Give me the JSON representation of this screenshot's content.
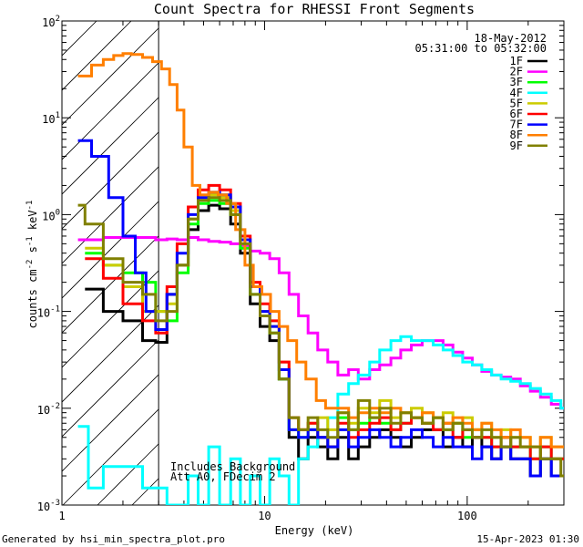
{
  "chart_data": {
    "type": "line",
    "title": "Count Spectra for RHESSI Front Segments",
    "xlabel": "Energy (keV)",
    "ylabel_main": "counts cm",
    "ylabel_sup1": "-2",
    "ylabel_mid": " s",
    "ylabel_sup2": "-1",
    "ylabel_end": " keV",
    "ylabel_sup3": "-1",
    "x_scale": "log",
    "y_scale": "log",
    "xlim": [
      1,
      300
    ],
    "ylim": [
      0.001,
      100
    ],
    "x_tick_labels": [
      {
        "v": 1,
        "label": "1"
      },
      {
        "v": 10,
        "label": "10"
      },
      {
        "v": 100,
        "label": "100"
      }
    ],
    "y_tick_labels": [
      {
        "v": 0.001,
        "base": "10",
        "exp": "-3"
      },
      {
        "v": 0.01,
        "base": "10",
        "exp": "-2"
      },
      {
        "v": 0.1,
        "base": "10",
        "exp": "-1"
      },
      {
        "v": 1,
        "base": "10",
        "exp": "0"
      },
      {
        "v": 10,
        "base": "10",
        "exp": "1"
      },
      {
        "v": 100,
        "base": "10",
        "exp": "2"
      }
    ],
    "date": "18-May-2012",
    "time_range": "05:31:00 to 05:32:00",
    "annotation_lines": [
      "Includes Background",
      "Att A0, FDecim 2"
    ],
    "attenuator_cutoff_kev": 3,
    "grid": false,
    "legend_position": "top-right",
    "series": [
      {
        "name": "1F",
        "color": "#000000",
        "x": [
          1.3,
          1.6,
          2.0,
          2.5,
          2.9,
          3.3,
          3.7,
          4.2,
          4.7,
          5.3,
          6.0,
          6.8,
          7.6,
          8.5,
          9.5,
          10.6,
          11.8,
          13.2,
          14.7,
          16.4,
          18.3,
          20.5,
          23,
          26,
          29,
          33,
          37,
          42,
          47,
          53,
          60,
          68,
          76,
          85,
          95,
          106,
          118,
          132,
          147,
          164,
          183,
          205,
          230,
          260,
          290
        ],
        "values": [
          0.17,
          0.1,
          0.08,
          0.05,
          0.048,
          0.15,
          0.3,
          0.7,
          1.1,
          1.25,
          1.15,
          0.8,
          0.4,
          0.12,
          0.07,
          0.05,
          0.02,
          0.005,
          0.003,
          0.005,
          0.004,
          0.003,
          0.005,
          0.003,
          0.004,
          0.005,
          0.006,
          0.005,
          0.004,
          0.005,
          0.006,
          0.006,
          0.004,
          0.005,
          0.004,
          0.005,
          0.004,
          0.003,
          0.004,
          0.003,
          0.003,
          0.002,
          0.003,
          0.002,
          0.002
        ]
      },
      {
        "name": "2F",
        "color": "#ff00ff",
        "x": [
          1.2,
          1.6,
          2.0,
          2.5,
          2.9,
          3.3,
          3.7,
          4.2,
          4.7,
          5.3,
          6.0,
          6.8,
          7.6,
          8.5,
          9.5,
          10.6,
          11.8,
          13.2,
          14.7,
          16.4,
          18.3,
          20.5,
          23,
          26,
          29,
          33,
          37,
          42,
          47,
          53,
          60,
          68,
          76,
          85,
          95,
          106,
          118,
          132,
          147,
          164,
          183,
          205,
          230,
          260,
          290
        ],
        "values": [
          0.55,
          0.58,
          0.58,
          0.58,
          0.55,
          0.56,
          0.55,
          0.58,
          0.55,
          0.53,
          0.52,
          0.5,
          0.48,
          0.42,
          0.4,
          0.35,
          0.25,
          0.15,
          0.09,
          0.06,
          0.04,
          0.03,
          0.022,
          0.025,
          0.02,
          0.025,
          0.028,
          0.033,
          0.04,
          0.045,
          0.05,
          0.05,
          0.045,
          0.038,
          0.033,
          0.028,
          0.024,
          0.022,
          0.021,
          0.02,
          0.017,
          0.015,
          0.013,
          0.011,
          0.01
        ]
      },
      {
        "name": "3F",
        "color": "#00ff00",
        "x": [
          1.3,
          1.6,
          2.0,
          2.5,
          2.9,
          3.3,
          3.7,
          4.2,
          4.7,
          5.3,
          6.0,
          6.8,
          7.6,
          8.5,
          9.5,
          10.6,
          11.8,
          13.2,
          14.7,
          16.4,
          18.3,
          20.5,
          23,
          26,
          29,
          33,
          37,
          42,
          47,
          53,
          60,
          68,
          76,
          85,
          95,
          106,
          118,
          132,
          147,
          164,
          183,
          205,
          230,
          260,
          290
        ],
        "values": [
          0.4,
          0.3,
          0.25,
          0.2,
          0.1,
          0.08,
          0.25,
          0.8,
          1.3,
          1.4,
          1.3,
          1.0,
          0.45,
          0.15,
          0.09,
          0.06,
          0.02,
          0.006,
          0.005,
          0.006,
          0.005,
          0.004,
          0.008,
          0.006,
          0.007,
          0.008,
          0.007,
          0.006,
          0.007,
          0.008,
          0.007,
          0.008,
          0.006,
          0.007,
          0.005,
          0.006,
          0.005,
          0.004,
          0.005,
          0.004,
          0.004,
          0.003,
          0.004,
          0.003,
          0.003
        ]
      },
      {
        "name": "4F",
        "color": "#00ffff",
        "x": [
          1.2,
          1.35,
          1.35,
          1.6,
          1.6,
          2.3,
          2.3,
          2.5,
          2.5,
          2.9,
          3.3,
          3.7,
          4.2,
          4.7,
          5.3,
          6.0,
          6.8,
          7.6,
          8.5,
          9.5,
          10.6,
          11.8,
          13.2,
          14.7,
          16.4,
          18.3,
          20.5,
          23,
          26,
          29,
          33,
          37,
          42,
          47,
          53,
          60,
          68,
          76,
          85,
          95,
          106,
          118,
          132,
          147,
          164,
          183,
          205,
          230,
          260,
          290
        ],
        "values": [
          0.0065,
          0.0065,
          0.0015,
          0.0015,
          0.0025,
          0.0025,
          0.0025,
          0.0025,
          0.0015,
          0.0015,
          0.001,
          0.001,
          0.002,
          0.001,
          0.004,
          0.001,
          0.003,
          0.001,
          0.002,
          0.001,
          0.003,
          0.002,
          0.001,
          0.003,
          0.004,
          0.005,
          0.008,
          0.014,
          0.018,
          0.022,
          0.03,
          0.04,
          0.05,
          0.055,
          0.05,
          0.05,
          0.045,
          0.04,
          0.035,
          0.03,
          0.028,
          0.025,
          0.022,
          0.02,
          0.019,
          0.018,
          0.016,
          0.014,
          0.012,
          0.01
        ]
      },
      {
        "name": "5F",
        "color": "#cccc00",
        "x": [
          1.3,
          1.6,
          2.0,
          2.5,
          2.9,
          3.3,
          3.7,
          4.2,
          4.7,
          5.3,
          6.0,
          6.8,
          7.6,
          8.5,
          9.5,
          10.6,
          11.8,
          13.2,
          14.7,
          16.4,
          18.3,
          20.5,
          23,
          26,
          29,
          33,
          37,
          42,
          47,
          53,
          60,
          68,
          76,
          85,
          95,
          106,
          118,
          132,
          147,
          164,
          183,
          205,
          230,
          260,
          290
        ],
        "values": [
          0.45,
          0.3,
          0.18,
          0.1,
          0.1,
          0.12,
          0.3,
          0.9,
          1.5,
          1.6,
          1.5,
          1.1,
          0.5,
          0.18,
          0.1,
          0.07,
          0.03,
          0.008,
          0.006,
          0.007,
          0.008,
          0.006,
          0.009,
          0.007,
          0.01,
          0.009,
          0.012,
          0.008,
          0.009,
          0.01,
          0.009,
          0.008,
          0.009,
          0.007,
          0.008,
          0.006,
          0.007,
          0.005,
          0.006,
          0.005,
          0.005,
          0.004,
          0.005,
          0.004,
          0.004
        ]
      },
      {
        "name": "6F",
        "color": "#ff0000",
        "x": [
          1.3,
          1.6,
          2.0,
          2.5,
          2.9,
          3.3,
          3.7,
          4.2,
          4.7,
          5.3,
          6.0,
          6.8,
          7.6,
          8.5,
          9.5,
          10.6,
          11.8,
          13.2,
          14.7,
          16.4,
          18.3,
          20.5,
          23,
          26,
          29,
          33,
          37,
          42,
          47,
          53,
          60,
          68,
          76,
          85,
          95,
          106,
          118,
          132,
          147,
          164,
          183,
          205,
          230,
          260,
          290
        ],
        "values": [
          0.35,
          0.22,
          0.12,
          0.08,
          0.06,
          0.18,
          0.5,
          1.2,
          1.8,
          2.0,
          1.8,
          1.3,
          0.6,
          0.2,
          0.12,
          0.08,
          0.03,
          0.008,
          0.006,
          0.007,
          0.005,
          0.004,
          0.007,
          0.005,
          0.006,
          0.007,
          0.008,
          0.006,
          0.007,
          0.008,
          0.007,
          0.006,
          0.007,
          0.005,
          0.006,
          0.005,
          0.005,
          0.004,
          0.005,
          0.004,
          0.004,
          0.003,
          0.004,
          0.003,
          0.003
        ]
      },
      {
        "name": "7F",
        "color": "#0000ff",
        "x": [
          1.2,
          1.4,
          1.4,
          1.7,
          1.7,
          2.0,
          2.0,
          2.3,
          2.3,
          2.6,
          2.6,
          2.9,
          3.3,
          3.7,
          4.2,
          4.7,
          5.3,
          6.0,
          6.8,
          7.6,
          8.5,
          9.5,
          10.6,
          11.8,
          13.2,
          14.7,
          16.4,
          18.3,
          20.5,
          23,
          26,
          29,
          33,
          37,
          42,
          47,
          53,
          60,
          68,
          76,
          85,
          95,
          106,
          118,
          132,
          147,
          164,
          183,
          205,
          230,
          260,
          290
        ],
        "values": [
          5.8,
          5.8,
          4.0,
          4.0,
          1.5,
          1.5,
          0.6,
          0.6,
          0.25,
          0.25,
          0.1,
          0.065,
          0.15,
          0.4,
          1.0,
          1.5,
          1.7,
          1.6,
          1.2,
          0.55,
          0.18,
          0.1,
          0.07,
          0.025,
          0.006,
          0.005,
          0.006,
          0.005,
          0.004,
          0.006,
          0.004,
          0.005,
          0.006,
          0.005,
          0.004,
          0.005,
          0.006,
          0.005,
          0.004,
          0.005,
          0.004,
          0.004,
          0.003,
          0.004,
          0.003,
          0.004,
          0.003,
          0.003,
          0.002,
          0.003,
          0.002,
          0.002
        ]
      },
      {
        "name": "8F",
        "color": "#ff7f00",
        "x": [
          1.2,
          1.4,
          1.6,
          1.8,
          2.0,
          2.2,
          2.5,
          2.8,
          3.1,
          3.4,
          3.7,
          4.0,
          4.4,
          4.8,
          5.3,
          5.9,
          6.5,
          7.2,
          8.0,
          8.8,
          9.7,
          10.7,
          11.8,
          13.0,
          14.4,
          16,
          18,
          20,
          23,
          26,
          29,
          33,
          37,
          42,
          47,
          53,
          60,
          68,
          76,
          85,
          95,
          106,
          118,
          132,
          147,
          164,
          183,
          205,
          230,
          260,
          290
        ],
        "values": [
          27,
          35,
          40,
          44,
          46,
          45,
          42,
          38,
          32,
          22,
          12,
          5.0,
          2.0,
          1.6,
          1.7,
          1.6,
          1.3,
          0.7,
          0.3,
          0.18,
          0.15,
          0.1,
          0.07,
          0.05,
          0.03,
          0.02,
          0.012,
          0.01,
          0.01,
          0.008,
          0.009,
          0.01,
          0.009,
          0.01,
          0.009,
          0.008,
          0.009,
          0.008,
          0.007,
          0.008,
          0.007,
          0.006,
          0.007,
          0.006,
          0.005,
          0.006,
          0.005,
          0.004,
          0.005,
          0.004,
          0.004
        ]
      },
      {
        "name": "9F",
        "color": "#808000",
        "x": [
          1.2,
          1.3,
          1.3,
          1.6,
          2.0,
          2.5,
          2.9,
          3.3,
          3.7,
          4.2,
          4.7,
          5.3,
          6.0,
          6.8,
          7.6,
          8.5,
          9.5,
          10.6,
          11.8,
          13.2,
          14.7,
          16.4,
          18.3,
          20.5,
          23,
          26,
          29,
          33,
          37,
          42,
          47,
          53,
          60,
          68,
          76,
          85,
          95,
          106,
          118,
          132,
          147,
          164,
          183,
          205,
          230,
          260,
          290
        ],
        "values": [
          1.25,
          1.25,
          0.8,
          0.35,
          0.2,
          0.15,
          0.08,
          0.1,
          0.3,
          0.9,
          1.4,
          1.5,
          1.4,
          1.0,
          0.5,
          0.15,
          0.09,
          0.06,
          0.02,
          0.008,
          0.006,
          0.008,
          0.006,
          0.005,
          0.009,
          0.006,
          0.012,
          0.008,
          0.01,
          0.007,
          0.009,
          0.008,
          0.007,
          0.008,
          0.006,
          0.007,
          0.006,
          0.005,
          0.006,
          0.005,
          0.004,
          0.005,
          0.004,
          0.004,
          0.003,
          0.003,
          0.002
        ]
      }
    ]
  },
  "footer": {
    "left": "Generated by hsi_min_spectra_plot.pro",
    "right": "15-Apr-2023 01:30"
  }
}
